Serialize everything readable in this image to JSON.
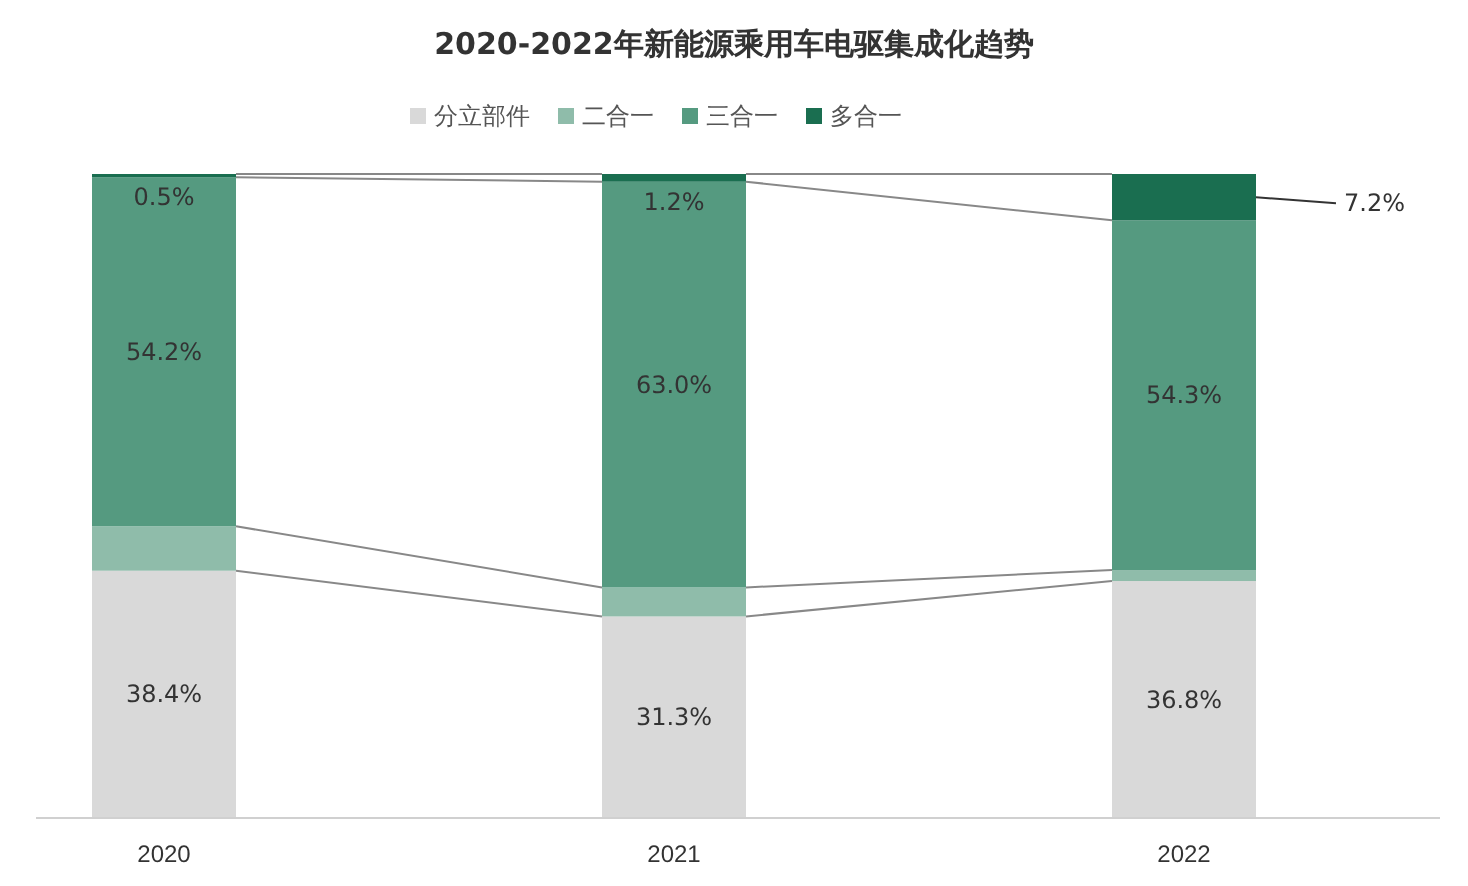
{
  "chart_data": {
    "type": "bar",
    "title": "2020-2022年新能源乘用车电驱集成化趋势",
    "categories": [
      "2020",
      "2021",
      "2022"
    ],
    "stacked": true,
    "ylim": [
      0,
      100
    ],
    "tick_labels": "x",
    "legend": "top",
    "series": [
      {
        "name": "分立部件",
        "color": "#d9d9d9",
        "values": [
          38.4,
          31.3,
          36.8
        ],
        "value_labels": [
          "38.4%",
          "31.3%",
          "36.8%"
        ]
      },
      {
        "name": "二合一",
        "color": "#8fbcaa",
        "values": [
          6.9,
          4.5,
          1.7
        ],
        "value_labels": [
          null,
          null,
          null
        ]
      },
      {
        "name": "三合一",
        "color": "#559a80",
        "values": [
          54.2,
          63.0,
          54.3
        ],
        "value_labels": [
          "54.2%",
          "63.0%",
          "54.3%"
        ]
      },
      {
        "name": "多合一",
        "color": "#1a6e50",
        "values": [
          0.5,
          1.2,
          7.2
        ],
        "value_labels": [
          "0.5%",
          "1.2%",
          "7.2%"
        ]
      }
    ]
  }
}
